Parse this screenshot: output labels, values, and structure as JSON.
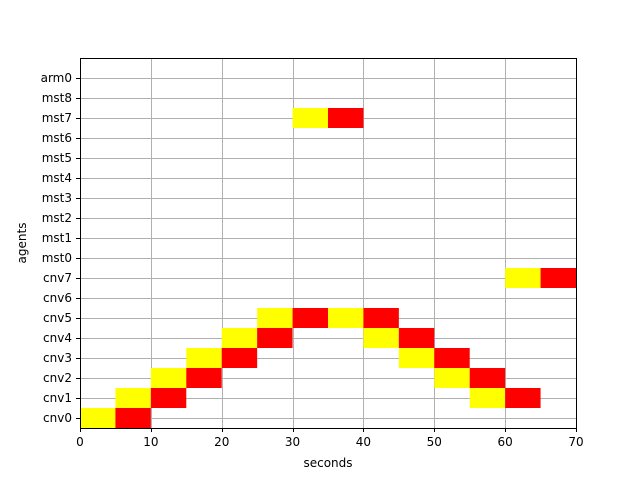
{
  "chart_data": {
    "type": "bar",
    "orientation": "horizontal-gantt",
    "title": "",
    "xlabel": "seconds",
    "ylabel": "agents",
    "xlim": [
      0,
      70
    ],
    "xticks": [
      0,
      10,
      20,
      30,
      40,
      50,
      60,
      70
    ],
    "grid": true,
    "categories": [
      "cnv0",
      "cnv1",
      "cnv2",
      "cnv3",
      "cnv4",
      "cnv5",
      "cnv6",
      "cnv7",
      "mst0",
      "mst1",
      "mst2",
      "mst3",
      "mst4",
      "mst5",
      "mst6",
      "mst7",
      "mst8",
      "arm0"
    ],
    "colors": {
      "yellow": "#ffff00",
      "red": "#ff0000"
    },
    "series": [
      {
        "color": "yellow",
        "segments": [
          {
            "agent": "cnv0",
            "start": 0,
            "end": 5
          },
          {
            "agent": "cnv1",
            "start": 5,
            "end": 10
          },
          {
            "agent": "cnv2",
            "start": 10,
            "end": 15
          },
          {
            "agent": "cnv3",
            "start": 15,
            "end": 20
          },
          {
            "agent": "cnv4",
            "start": 20,
            "end": 25
          },
          {
            "agent": "cnv5",
            "start": 25,
            "end": 30
          },
          {
            "agent": "mst7",
            "start": 30,
            "end": 35
          },
          {
            "agent": "cnv5",
            "start": 35,
            "end": 40
          },
          {
            "agent": "cnv4",
            "start": 40,
            "end": 45
          },
          {
            "agent": "cnv3",
            "start": 45,
            "end": 50
          },
          {
            "agent": "cnv2",
            "start": 50,
            "end": 55
          },
          {
            "agent": "cnv1",
            "start": 55,
            "end": 60
          },
          {
            "agent": "cnv7",
            "start": 60,
            "end": 65
          }
        ]
      },
      {
        "color": "red",
        "segments": [
          {
            "agent": "cnv0",
            "start": 5,
            "end": 10
          },
          {
            "agent": "cnv1",
            "start": 10,
            "end": 15
          },
          {
            "agent": "cnv2",
            "start": 15,
            "end": 20
          },
          {
            "agent": "cnv3",
            "start": 20,
            "end": 25
          },
          {
            "agent": "cnv4",
            "start": 25,
            "end": 30
          },
          {
            "agent": "cnv5",
            "start": 30,
            "end": 35
          },
          {
            "agent": "mst7",
            "start": 35,
            "end": 40
          },
          {
            "agent": "cnv5",
            "start": 40,
            "end": 45
          },
          {
            "agent": "cnv4",
            "start": 45,
            "end": 50
          },
          {
            "agent": "cnv3",
            "start": 50,
            "end": 55
          },
          {
            "agent": "cnv2",
            "start": 55,
            "end": 60
          },
          {
            "agent": "cnv1",
            "start": 60,
            "end": 65
          },
          {
            "agent": "cnv7",
            "start": 65,
            "end": 70
          }
        ]
      }
    ]
  }
}
